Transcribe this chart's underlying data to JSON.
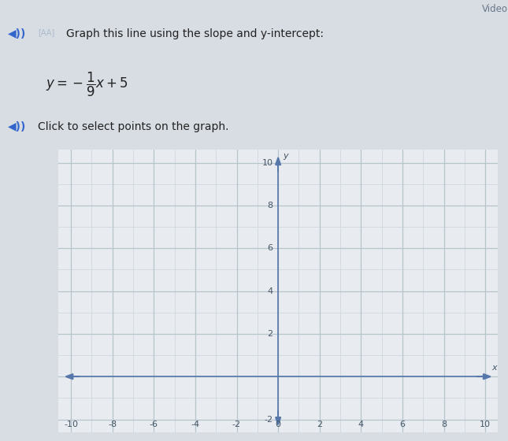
{
  "title_line1": "Graph this line using the slope and y-intercept:",
  "equation_display": "$y = -\\dfrac{1}{9}x + 5$",
  "subtitle": "Click to select points on the graph.",
  "xmin": -10,
  "xmax": 10,
  "ymin": -2,
  "ymax": 10,
  "xticks": [
    -10,
    -8,
    -6,
    -4,
    -2,
    0,
    2,
    4,
    6,
    8,
    10
  ],
  "yticks": [
    -2,
    2,
    4,
    6,
    8,
    10
  ],
  "slope": -0.1111111111111111,
  "y_intercept": 5,
  "minor_grid_color": "#d0d8e0",
  "major_grid_color": "#b8c4cc",
  "axis_color": "#5577aa",
  "bg_color": "#e8ecf0",
  "outer_bg": "#d8dde4",
  "text_color": "#222222",
  "axis_label_x": "x",
  "axis_label_y": "y",
  "tick_fontsize": 8,
  "header_text_fontsize": 10,
  "equation_fontsize": 12
}
